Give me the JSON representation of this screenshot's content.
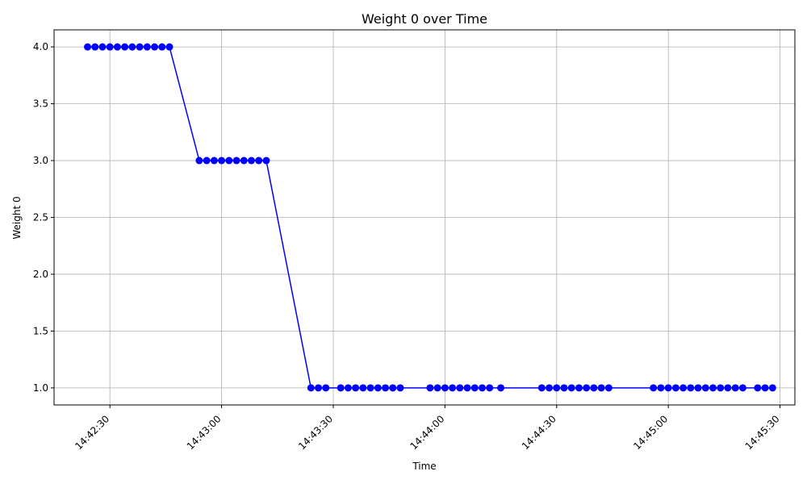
{
  "chart_data": {
    "type": "line",
    "title": "Weight 0 over Time",
    "xlabel": "Time",
    "ylabel": "Weight 0",
    "x_tick_labels": [
      "14:42:30",
      "14:43:00",
      "14:43:30",
      "14:44:00",
      "14:44:30",
      "14:45:00",
      "14:45:30"
    ],
    "x_tick_values": [
      "14:42:30",
      "14:43:00",
      "14:43:30",
      "14:44:00",
      "14:44:30",
      "14:45:00",
      "14:45:30"
    ],
    "y_tick_labels": [
      "1.0",
      "1.5",
      "2.0",
      "2.5",
      "3.0",
      "3.5",
      "4.0"
    ],
    "y_tick_values": [
      1.0,
      1.5,
      2.0,
      2.5,
      3.0,
      3.5,
      4.0
    ],
    "xlim": [
      "14:42:15",
      "14:45:34"
    ],
    "ylim": [
      0.85,
      4.15
    ],
    "grid": true,
    "line_color": "#0000ff",
    "marker_color": "#0000ff",
    "series": [
      {
        "x": [
          "14:42:24",
          "14:42:26",
          "14:42:28",
          "14:42:30",
          "14:42:32",
          "14:42:34",
          "14:42:36",
          "14:42:38",
          "14:42:40",
          "14:42:42",
          "14:42:44",
          "14:42:46",
          "14:42:54",
          "14:42:56",
          "14:42:58",
          "14:43:00",
          "14:43:02",
          "14:43:04",
          "14:43:06",
          "14:43:08",
          "14:43:10",
          "14:43:12",
          "14:43:24",
          "14:43:26",
          "14:43:28",
          "14:43:32",
          "14:43:34",
          "14:43:36",
          "14:43:38",
          "14:43:40",
          "14:43:42",
          "14:43:44",
          "14:43:46",
          "14:43:48",
          "14:43:56",
          "14:43:58",
          "14:44:00",
          "14:44:02",
          "14:44:04",
          "14:44:06",
          "14:44:08",
          "14:44:10",
          "14:44:12",
          "14:44:15",
          "14:44:26",
          "14:44:28",
          "14:44:30",
          "14:44:32",
          "14:44:34",
          "14:44:36",
          "14:44:38",
          "14:44:40",
          "14:44:42",
          "14:44:44",
          "14:44:56",
          "14:44:58",
          "14:45:00",
          "14:45:02",
          "14:45:04",
          "14:45:06",
          "14:45:08",
          "14:45:10",
          "14:45:12",
          "14:45:14",
          "14:45:16",
          "14:45:18",
          "14:45:20",
          "14:45:24",
          "14:45:26",
          "14:45:28"
        ],
        "values": [
          4,
          4,
          4,
          4,
          4,
          4,
          4,
          4,
          4,
          4,
          4,
          4,
          3,
          3,
          3,
          3,
          3,
          3,
          3,
          3,
          3,
          3,
          1,
          1,
          1,
          1,
          1,
          1,
          1,
          1,
          1,
          1,
          1,
          1,
          1,
          1,
          1,
          1,
          1,
          1,
          1,
          1,
          1,
          1,
          1,
          1,
          1,
          1,
          1,
          1,
          1,
          1,
          1,
          1,
          1,
          1,
          1,
          1,
          1,
          1,
          1,
          1,
          1,
          1,
          1,
          1,
          1,
          1,
          1,
          1
        ]
      }
    ]
  }
}
